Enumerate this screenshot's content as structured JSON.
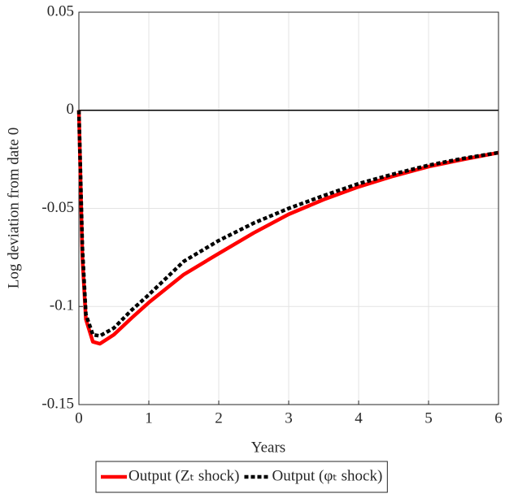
{
  "chart_data": {
    "type": "line",
    "x_label": "Years",
    "y_label": "Log deviation from date 0",
    "x": [
      0,
      0.05,
      0.1,
      0.2,
      0.3,
      0.5,
      0.75,
      1,
      1.5,
      2,
      2.5,
      3,
      3.5,
      4,
      4.5,
      5,
      5.5,
      6
    ],
    "series": [
      {
        "name": "Output (Zₜ shock)",
        "color": "#ff0000",
        "style": "solid",
        "values": [
          0,
          -0.075,
          -0.1065,
          -0.118,
          -0.119,
          -0.1144,
          -0.106,
          -0.098,
          -0.0837,
          -0.073,
          -0.0625,
          -0.053,
          -0.0455,
          -0.039,
          -0.0335,
          -0.0287,
          -0.025,
          -0.0216
        ]
      },
      {
        "name": "Output (φₜ shock)",
        "color": "#000000",
        "style": "dotted",
        "values": [
          0,
          -0.07,
          -0.104,
          -0.1144,
          -0.115,
          -0.111,
          -0.102,
          -0.094,
          -0.077,
          -0.0664,
          -0.0575,
          -0.05,
          -0.0435,
          -0.0374,
          -0.0325,
          -0.028,
          -0.0245,
          -0.0216
        ]
      }
    ],
    "xlim": [
      0,
      6
    ],
    "xticks": [
      0,
      1,
      2,
      3,
      4,
      5,
      6
    ],
    "ylim": [
      -0.15,
      0.05
    ],
    "yticks": [
      -0.15,
      -0.1,
      -0.05,
      0,
      0.05
    ],
    "grid": true,
    "zero_line": true,
    "legend": "bottom"
  }
}
